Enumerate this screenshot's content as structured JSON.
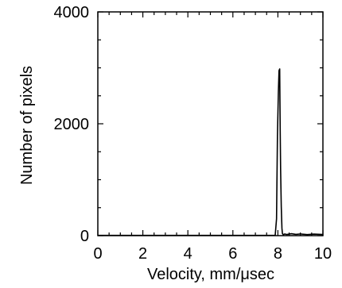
{
  "chart_data": {
    "type": "line",
    "xlabel": "Velocity, mm/μsec",
    "ylabel": "Number of pixels",
    "xlim": [
      0,
      10
    ],
    "ylim": [
      0,
      4000
    ],
    "x_ticks": [
      "0",
      "2",
      "4",
      "6",
      "8",
      "10"
    ],
    "y_ticks": [
      "0",
      "2000",
      "4000"
    ],
    "grid": false,
    "series": [
      {
        "x": [
          0,
          7.88,
          7.94,
          7.98,
          8.02,
          8.05,
          8.08,
          8.1,
          8.12,
          8.15,
          8.18,
          8.2,
          8.24,
          8.3,
          8.4,
          8.6,
          8.8,
          9.0,
          9.3,
          9.6,
          10
        ],
        "y": [
          5,
          5,
          300,
          1780,
          2550,
          2950,
          2980,
          1980,
          1200,
          520,
          130,
          40,
          15,
          30,
          20,
          35,
          22,
          30,
          18,
          28,
          20
        ]
      }
    ]
  }
}
